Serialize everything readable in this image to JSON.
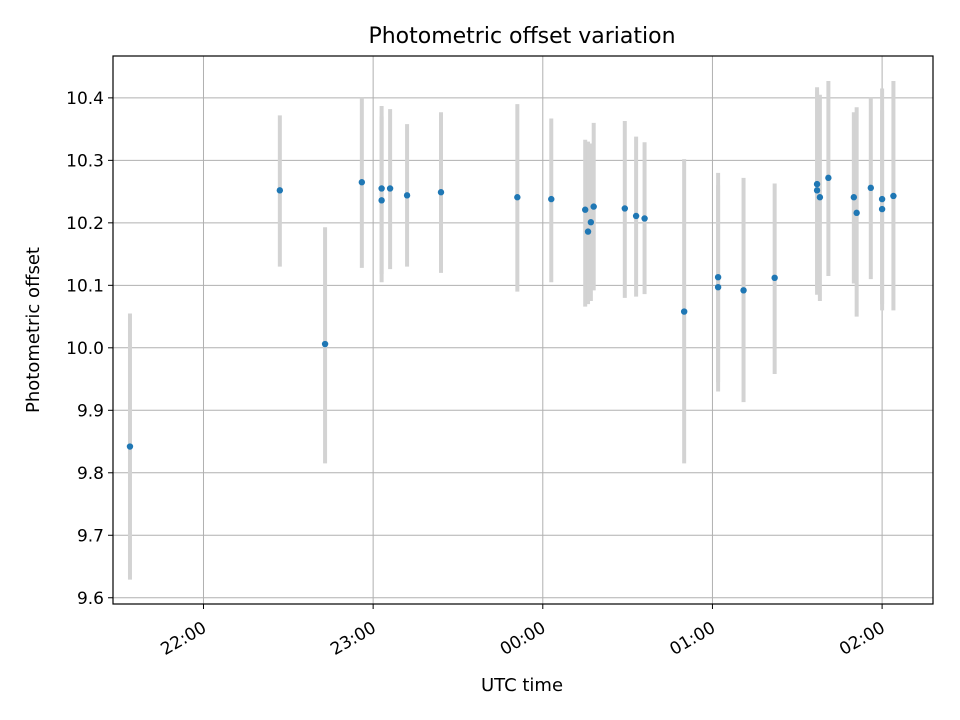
{
  "chart_data": {
    "type": "scatter",
    "title": "Photometric offset variation",
    "xlabel": "UTC time",
    "ylabel": "Photometric offset",
    "x_tick_labels": [
      "22:00",
      "23:00",
      "00:00",
      "01:00",
      "02:00"
    ],
    "y_tick_labels": [
      "9.6",
      "9.7",
      "9.8",
      "9.9",
      "10.0",
      "10.1",
      "10.2",
      "10.3",
      "10.4"
    ],
    "y_ticks": [
      9.6,
      9.7,
      9.8,
      9.9,
      10.0,
      10.1,
      10.2,
      10.3,
      10.4
    ],
    "x_ticks": [
      "22:00",
      "23:00",
      "00:00",
      "01:00",
      "02:00"
    ],
    "xlim": [
      "21:28",
      "02:18"
    ],
    "ylim": [
      9.59,
      10.467
    ],
    "grid": true,
    "x_axis_crosses_midnight": true,
    "point_color": "#1f77b4",
    "errorbar_color": "#d3d3d3",
    "points": [
      {
        "t": "21:34",
        "y": 9.842,
        "lo": 9.629,
        "hi": 10.055
      },
      {
        "t": "22:27",
        "y": 10.252,
        "lo": 10.13,
        "hi": 10.372
      },
      {
        "t": "22:43",
        "y": 10.006,
        "lo": 9.815,
        "hi": 10.193
      },
      {
        "t": "22:56",
        "y": 10.265,
        "lo": 10.128,
        "hi": 10.4
      },
      {
        "t": "23:03",
        "y": 10.255,
        "lo": 10.118,
        "hi": 10.387
      },
      {
        "t": "23:03",
        "y": 10.236,
        "lo": 10.105,
        "hi": 10.37
      },
      {
        "t": "23:06",
        "y": 10.255,
        "lo": 10.126,
        "hi": 10.382
      },
      {
        "t": "23:12",
        "y": 10.244,
        "lo": 10.13,
        "hi": 10.358
      },
      {
        "t": "23:24",
        "y": 10.249,
        "lo": 10.12,
        "hi": 10.377
      },
      {
        "t": "23:51",
        "y": 10.241,
        "lo": 10.09,
        "hi": 10.39
      },
      {
        "t": "00:03",
        "y": 10.238,
        "lo": 10.105,
        "hi": 10.367
      },
      {
        "t": "00:15",
        "y": 10.221,
        "lo": 10.066,
        "hi": 10.333
      },
      {
        "t": "00:16",
        "y": 10.186,
        "lo": 10.07,
        "hi": 10.33
      },
      {
        "t": "00:17",
        "y": 10.201,
        "lo": 10.075,
        "hi": 10.327
      },
      {
        "t": "00:18",
        "y": 10.226,
        "lo": 10.092,
        "hi": 10.36
      },
      {
        "t": "00:29",
        "y": 10.223,
        "lo": 10.08,
        "hi": 10.363
      },
      {
        "t": "00:33",
        "y": 10.211,
        "lo": 10.082,
        "hi": 10.338
      },
      {
        "t": "00:36",
        "y": 10.207,
        "lo": 10.086,
        "hi": 10.329
      },
      {
        "t": "00:50",
        "y": 10.058,
        "lo": 9.815,
        "hi": 10.302
      },
      {
        "t": "01:02",
        "y": 10.097,
        "lo": 9.93,
        "hi": 10.28
      },
      {
        "t": "01:02",
        "y": 10.113,
        "lo": 9.945,
        "hi": 10.26
      },
      {
        "t": "01:11",
        "y": 10.092,
        "lo": 9.913,
        "hi": 10.272
      },
      {
        "t": "01:22",
        "y": 10.112,
        "lo": 9.958,
        "hi": 10.263
      },
      {
        "t": "01:37",
        "y": 10.262,
        "lo": 10.085,
        "hi": 10.417
      },
      {
        "t": "01:37",
        "y": 10.252,
        "lo": 10.095,
        "hi": 10.41
      },
      {
        "t": "01:38",
        "y": 10.241,
        "lo": 10.075,
        "hi": 10.405
      },
      {
        "t": "01:41",
        "y": 10.272,
        "lo": 10.115,
        "hi": 10.427
      },
      {
        "t": "01:50",
        "y": 10.241,
        "lo": 10.103,
        "hi": 10.377
      },
      {
        "t": "01:51",
        "y": 10.216,
        "lo": 10.05,
        "hi": 10.385
      },
      {
        "t": "01:56",
        "y": 10.256,
        "lo": 10.11,
        "hi": 10.4
      },
      {
        "t": "02:00",
        "y": 10.238,
        "lo": 10.06,
        "hi": 10.415
      },
      {
        "t": "02:00",
        "y": 10.222,
        "lo": 10.07,
        "hi": 10.38
      },
      {
        "t": "02:04",
        "y": 10.243,
        "lo": 10.06,
        "hi": 10.427
      }
    ]
  }
}
